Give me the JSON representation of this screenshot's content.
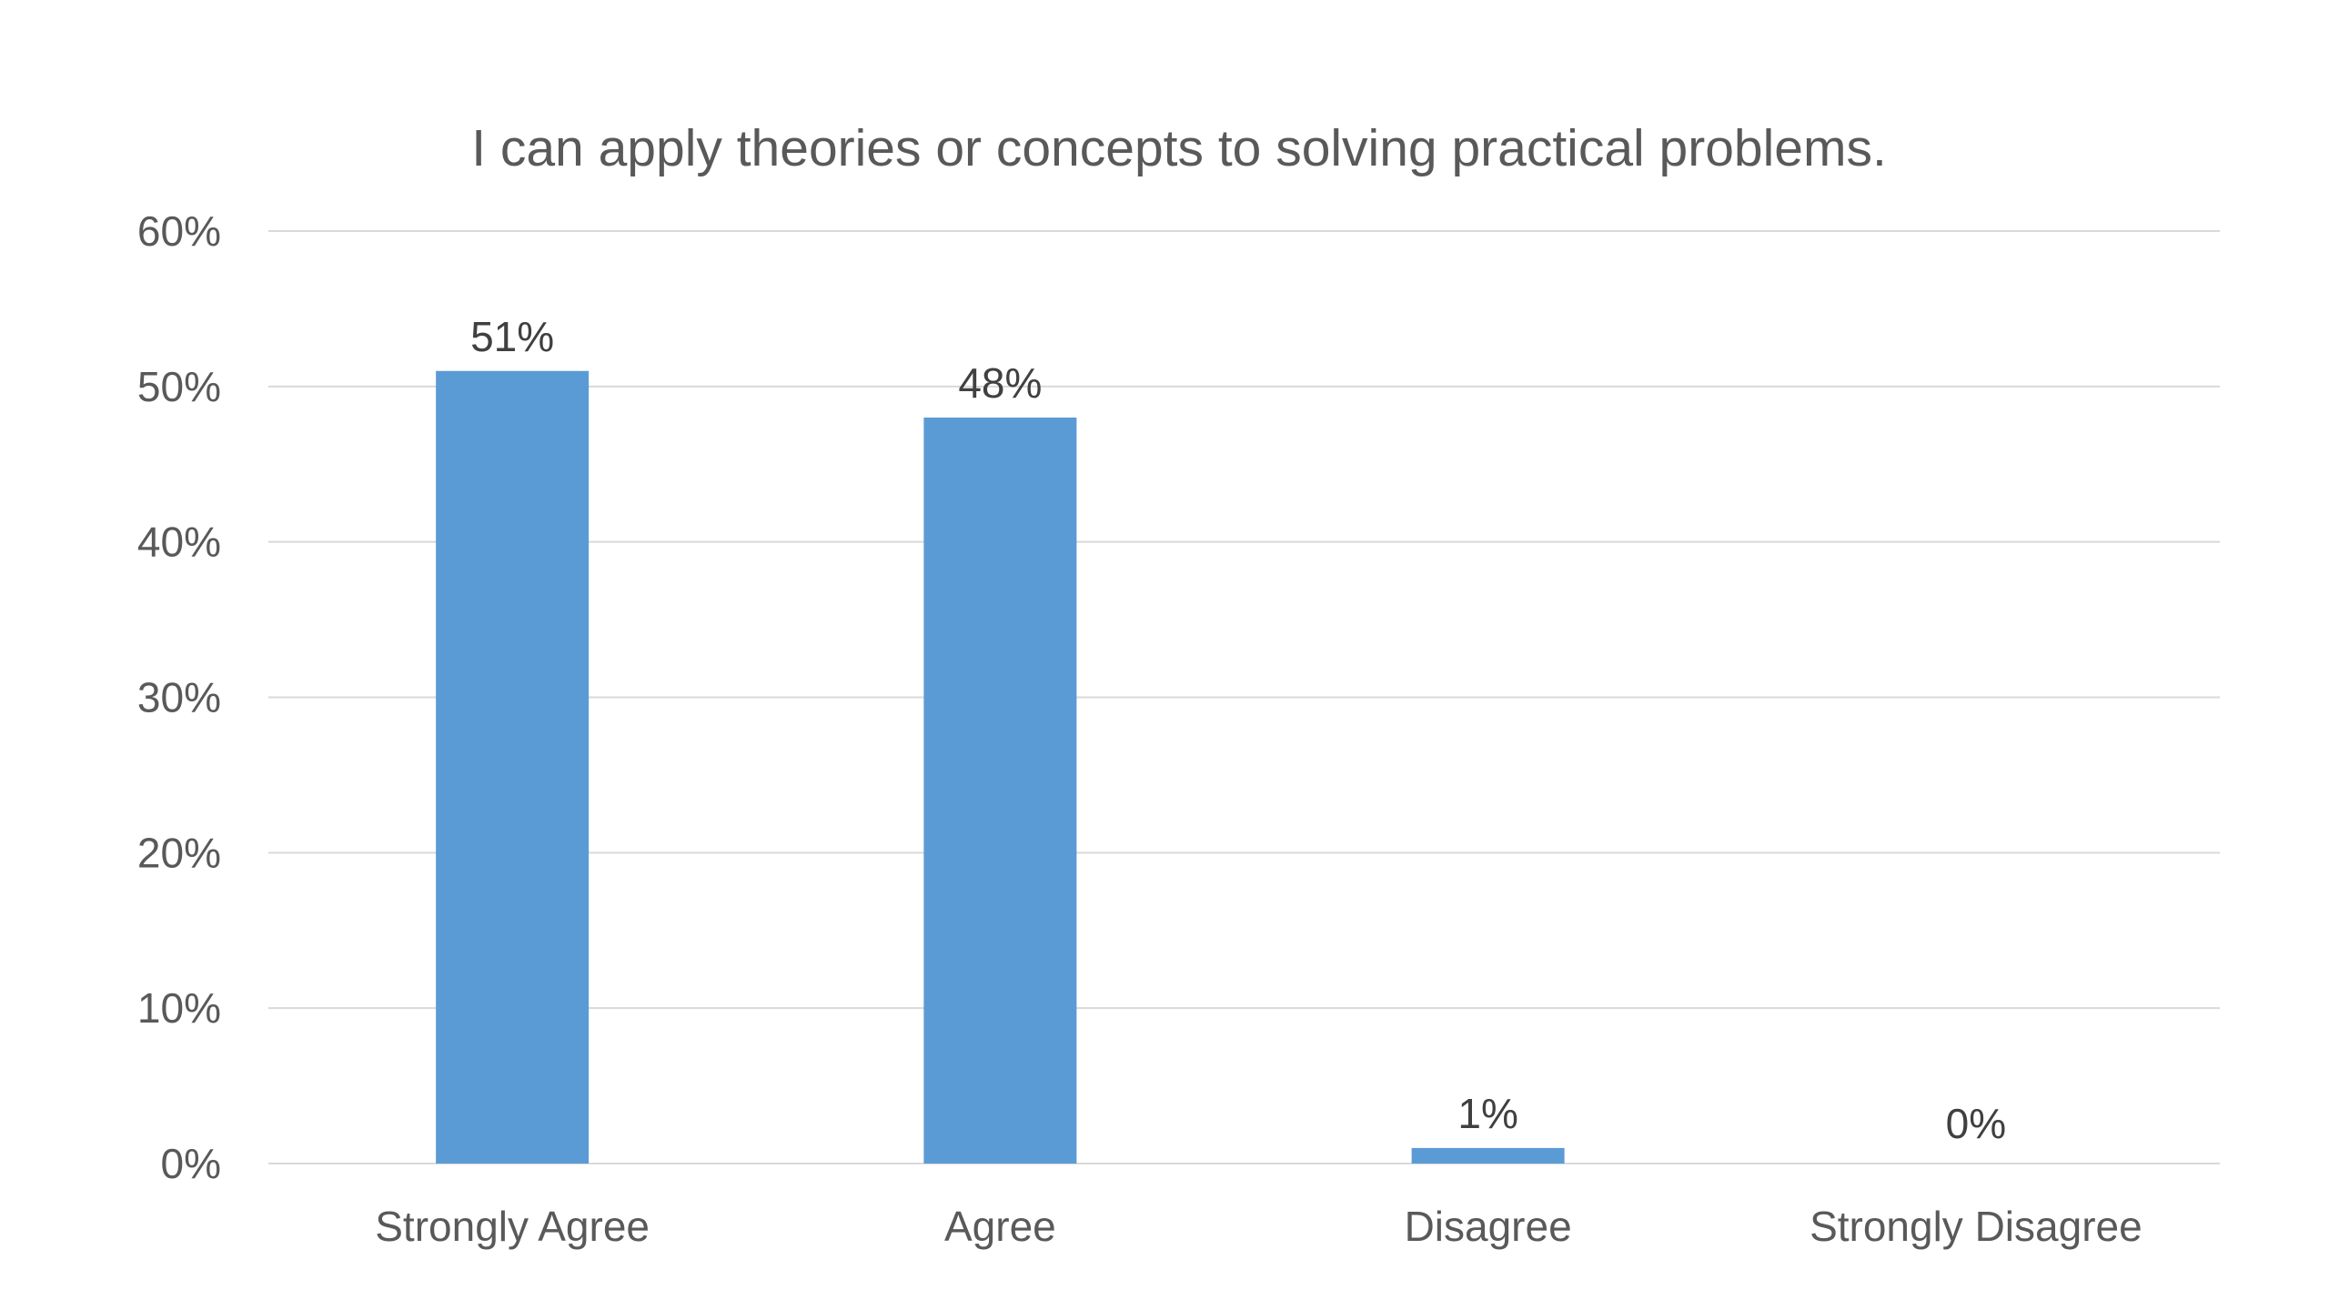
{
  "chart_data": {
    "type": "bar",
    "title": "I can apply theories or concepts to solving practical problems.",
    "xlabel": "",
    "ylabel": "",
    "categories": [
      "Strongly Agree",
      "Agree",
      "Disagree",
      "Strongly Disagree"
    ],
    "values": [
      51,
      48,
      1,
      0
    ],
    "value_labels": [
      "51%",
      "48%",
      "1%",
      "0%"
    ],
    "ylim": [
      0,
      60
    ],
    "y_ticks": [
      0,
      10,
      20,
      30,
      40,
      50,
      60
    ],
    "y_tick_labels": [
      "0%",
      "10%",
      "20%",
      "30%",
      "40%",
      "50%",
      "60%"
    ],
    "grid": true,
    "legend": "none",
    "colors": {
      "bar": "#5B9BD5",
      "grid": "#D9D9D9",
      "text": "#595959",
      "data_label": "#404040"
    }
  }
}
